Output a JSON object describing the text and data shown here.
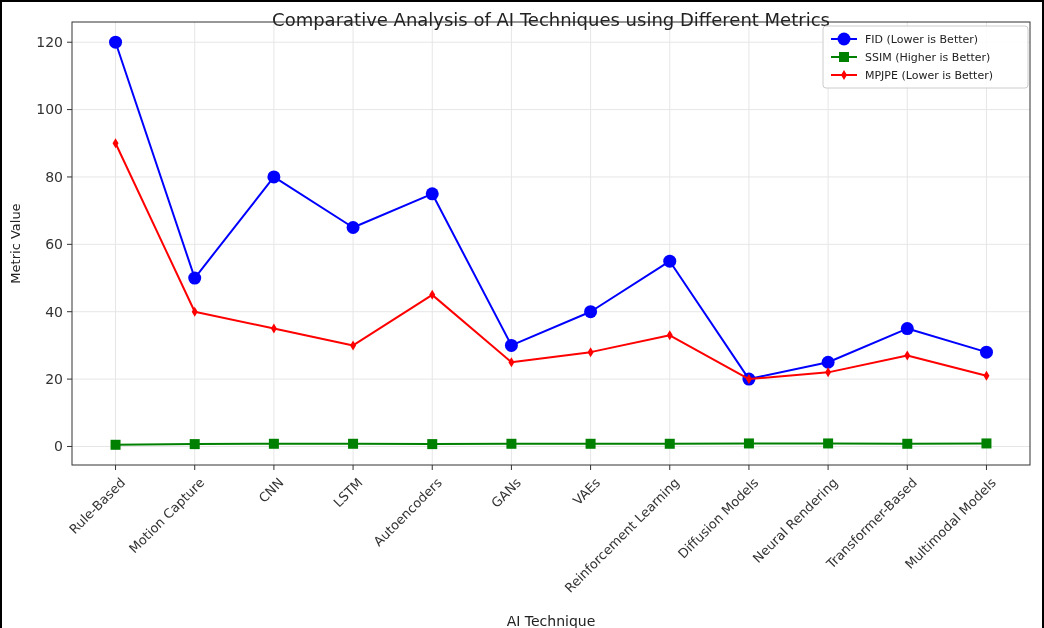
{
  "chart_data": {
    "type": "line",
    "title": "Comparative Analysis of AI Techniques using Different Metrics",
    "xlabel": "AI Technique",
    "ylabel": "Metric Value",
    "categories": [
      "Rule-Based",
      "Motion Capture",
      "CNN",
      "LSTM",
      "Autoencoders",
      "GANs",
      "VAEs",
      "Reinforcement Learning",
      "Diffusion Models",
      "Neural Rendering",
      "Transformer-Based",
      "Multimodal Models"
    ],
    "series": [
      {
        "name": "FID (Lower is Better)",
        "color": "#0000ff",
        "marker": "circle",
        "values": [
          120,
          50,
          80,
          65,
          75,
          30,
          40,
          55,
          20,
          25,
          35,
          28
        ]
      },
      {
        "name": "SSIM (Higher is Better)",
        "color": "#008000",
        "marker": "square",
        "values": [
          0.5,
          0.7,
          0.8,
          0.8,
          0.7,
          0.8,
          0.8,
          0.8,
          0.9,
          0.9,
          0.8,
          0.9
        ]
      },
      {
        "name": "MPJPE (Lower is Better)",
        "color": "#ff0000",
        "marker": "diamond",
        "values": [
          90,
          40,
          35,
          30,
          45,
          25,
          28,
          33,
          20,
          22,
          27,
          21
        ]
      }
    ],
    "ylim": [
      -5.5,
      126
    ],
    "yticks": [
      0,
      20,
      40,
      60,
      80,
      100,
      120
    ],
    "grid": true,
    "legend": "top right",
    "line_style": "solid"
  }
}
